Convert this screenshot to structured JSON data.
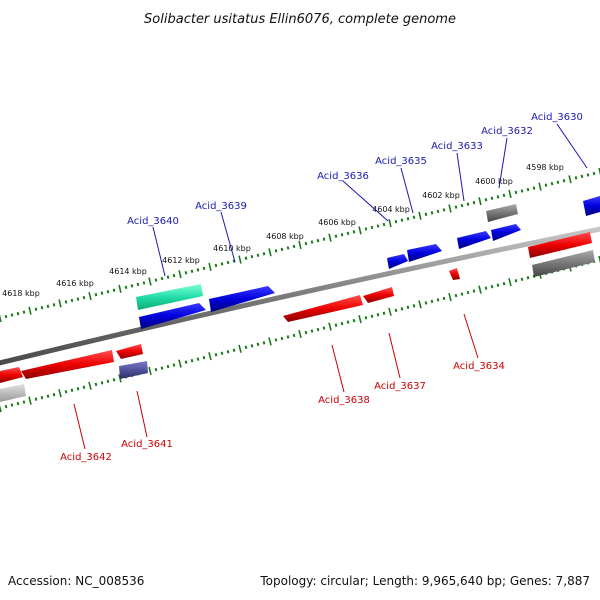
{
  "title": "Solibacter usitatus Ellin6076, complete genome",
  "footer": {
    "accession": "Accession: NC_008536",
    "topology": "Topology: circular; Length: 9,965,640 bp; Genes: 7,887"
  },
  "colors": {
    "forward": "#0000dd",
    "reverse": "#ee0000",
    "label_forward": "#1a1ab0",
    "label_reverse": "#cc0000",
    "ticks": "#1a7a1a",
    "backbone": "#888888",
    "rna": "#22ddaa",
    "pseudo": "#777777",
    "other": "#4a4a9a"
  },
  "ruler_labels": [
    "4598 kbp",
    "4600 kbp",
    "4602 kbp",
    "4604 kbp",
    "4606 kbp",
    "4608 kbp",
    "4610 kbp",
    "4612 kbp",
    "4614 kbp",
    "4616 kbp",
    "4618 kbp"
  ],
  "genes": [
    {
      "name": "Acid_3630",
      "strand": "forward"
    },
    {
      "name": "Acid_3632",
      "strand": "forward"
    },
    {
      "name": "Acid_3633",
      "strand": "forward"
    },
    {
      "name": "Acid_3635",
      "strand": "forward"
    },
    {
      "name": "Acid_3636",
      "strand": "forward"
    },
    {
      "name": "Acid_3639",
      "strand": "forward"
    },
    {
      "name": "Acid_3640",
      "strand": "forward"
    },
    {
      "name": "Acid_3634",
      "strand": "reverse"
    },
    {
      "name": "Acid_3637",
      "strand": "reverse"
    },
    {
      "name": "Acid_3638",
      "strand": "reverse"
    },
    {
      "name": "Acid_3641",
      "strand": "reverse"
    },
    {
      "name": "Acid_3642",
      "strand": "reverse"
    }
  ]
}
